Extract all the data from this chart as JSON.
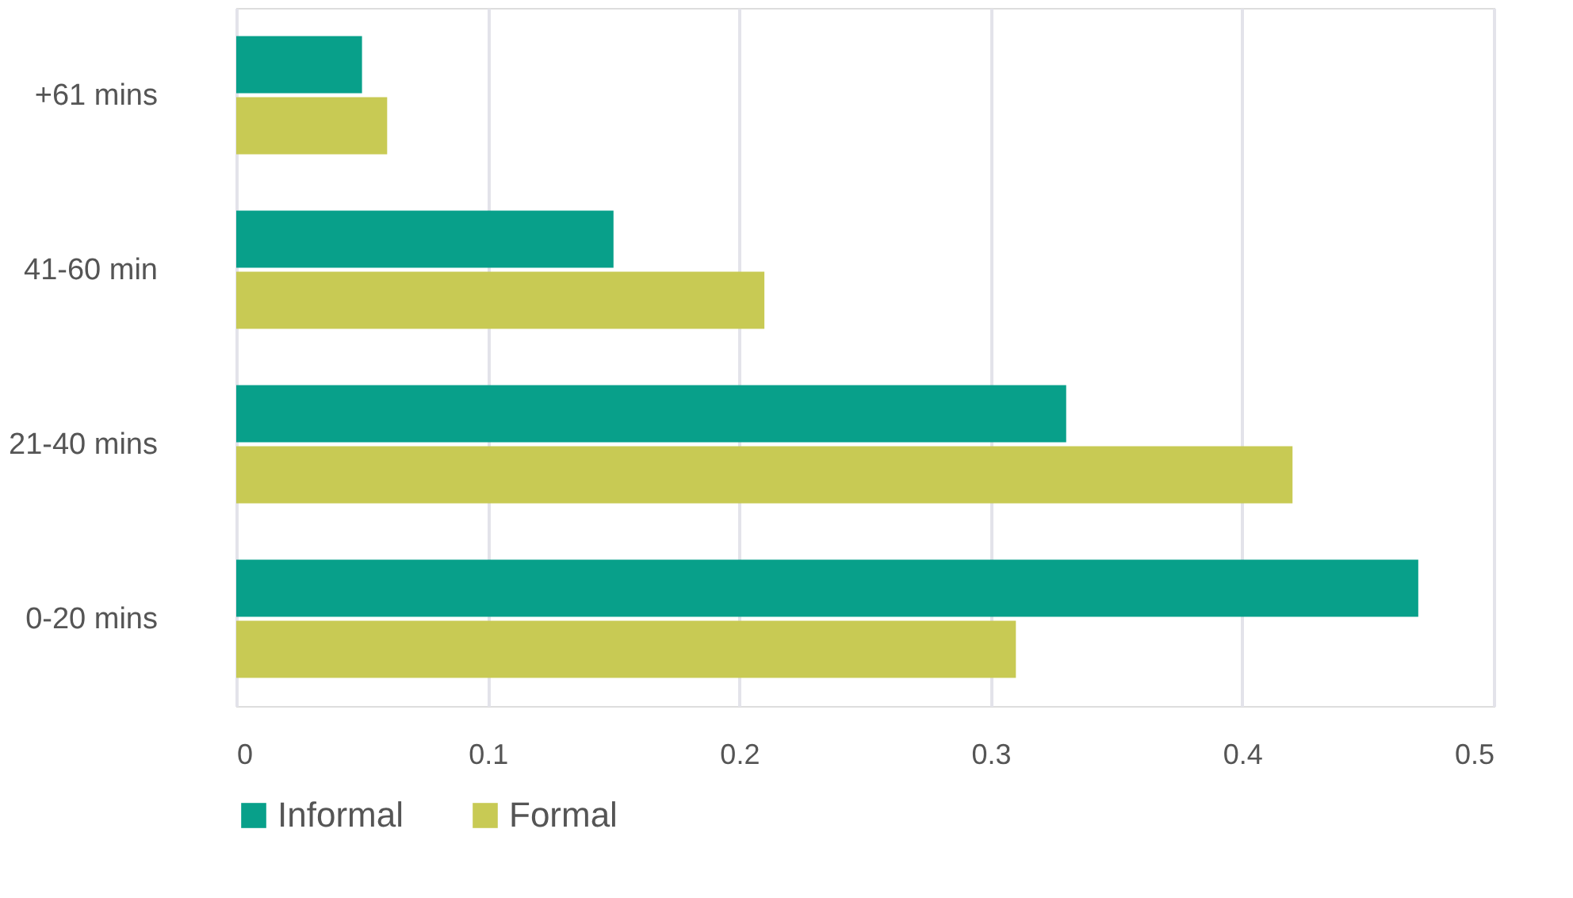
{
  "chart_data": {
    "type": "bar",
    "orientation": "horizontal",
    "categories": [
      "+61 mins",
      "41-60 min",
      "21-40 mins",
      "0-20 mins"
    ],
    "series": [
      {
        "name": "Informal",
        "color": "#08a08a",
        "values": [
          0.05,
          0.15,
          0.33,
          0.47
        ]
      },
      {
        "name": "Formal",
        "color": "#c8ca54",
        "values": [
          0.06,
          0.21,
          0.42,
          0.31
        ]
      }
    ],
    "xlim": [
      0,
      0.5
    ],
    "xticks": [
      0,
      0.1,
      0.2,
      0.3,
      0.4,
      0.5
    ],
    "grid": "x",
    "legend": "bottom"
  }
}
